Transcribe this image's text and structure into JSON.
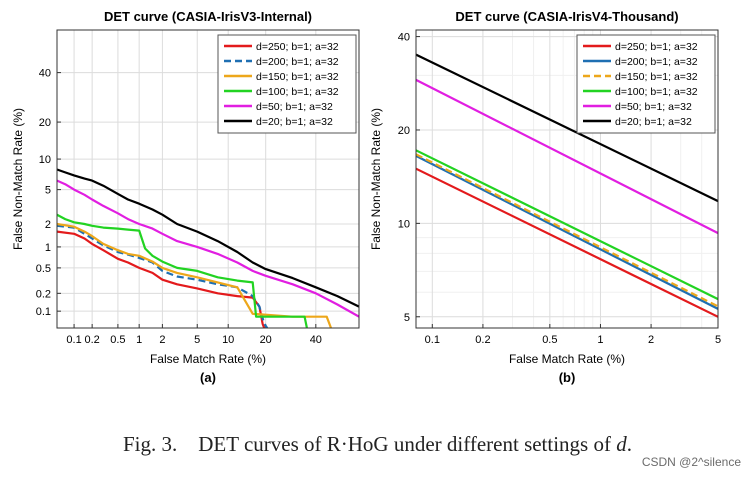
{
  "chart_data": [
    {
      "type": "line",
      "title": "DET curve (CASIA-IrisV3-Internal)",
      "xlabel": "False Match Rate (%)",
      "ylabel": "False Non-Match Rate (%)",
      "xscale": "probit",
      "yscale": "probit",
      "xlim": [
        0.05,
        60
      ],
      "ylim": [
        0.05,
        60
      ],
      "xticks": [
        0.1,
        0.2,
        0.5,
        1,
        2,
        5,
        10,
        20,
        40
      ],
      "xtick_labels": [
        "0.1",
        "0.2",
        "0.5",
        "1",
        "2",
        "5",
        "10",
        "20",
        "40"
      ],
      "yticks": [
        0.1,
        0.2,
        0.5,
        1,
        2,
        5,
        10,
        20,
        40
      ],
      "ytick_labels": [
        "0.1",
        "0.2",
        "0.5",
        "1",
        "2",
        "5",
        "10",
        "20",
        "40"
      ],
      "grid": true,
      "legend": "top-right",
      "panel_label": "(a)",
      "series": [
        {
          "name": "d=250; b=1; a=32",
          "color": "#e31a1c",
          "dash": "solid",
          "x": [
            0.05,
            0.1,
            0.15,
            0.2,
            0.3,
            0.5,
            0.7,
            1.0,
            1.5,
            2.0,
            3.0,
            5.0,
            8.0,
            12.0,
            16.0,
            18.0,
            19.0,
            19.5
          ],
          "y": [
            1.6,
            1.5,
            1.3,
            1.1,
            0.9,
            0.68,
            0.6,
            0.5,
            0.42,
            0.33,
            0.28,
            0.24,
            0.2,
            0.18,
            0.17,
            0.12,
            0.06,
            0.05
          ]
        },
        {
          "name": "d=200; b=1; a=32",
          "color": "#1f6fb2",
          "dash": "dashed",
          "x": [
            0.05,
            0.1,
            0.15,
            0.2,
            0.3,
            0.5,
            0.7,
            1.0,
            1.5,
            2.0,
            3.0,
            5.0,
            8.0,
            12.0,
            16.0,
            18.0,
            19.5,
            20.5
          ],
          "y": [
            1.9,
            1.8,
            1.5,
            1.3,
            1.05,
            0.85,
            0.78,
            0.7,
            0.6,
            0.45,
            0.37,
            0.33,
            0.28,
            0.25,
            0.18,
            0.12,
            0.06,
            0.05
          ]
        },
        {
          "name": "d=150; b=1; a=32",
          "color": "#eda71b",
          "dash": "solid",
          "x": [
            0.05,
            0.1,
            0.15,
            0.2,
            0.3,
            0.5,
            0.7,
            1.0,
            1.5,
            2.0,
            3.0,
            5.0,
            8.0,
            12.0,
            16.0,
            30.0,
            45.0,
            47.0
          ],
          "y": [
            2.0,
            1.85,
            1.6,
            1.4,
            1.1,
            0.9,
            0.8,
            0.75,
            0.62,
            0.5,
            0.42,
            0.36,
            0.3,
            0.25,
            0.09,
            0.08,
            0.08,
            0.05
          ]
        },
        {
          "name": "d=100; b=1; a=32",
          "color": "#22d322",
          "dash": "solid",
          "x": [
            0.05,
            0.07,
            0.1,
            0.15,
            0.2,
            0.3,
            0.5,
            0.7,
            1.0,
            1.2,
            1.5,
            2.0,
            3.0,
            5.0,
            8.0,
            12.0,
            16.0,
            17.0,
            35.0,
            36.0
          ],
          "y": [
            2.6,
            2.3,
            2.1,
            2.0,
            1.9,
            1.8,
            1.75,
            1.7,
            1.65,
            0.95,
            0.75,
            0.62,
            0.5,
            0.45,
            0.36,
            0.32,
            0.3,
            0.08,
            0.08,
            0.05
          ]
        },
        {
          "name": "d=50; b=1; a=32",
          "color": "#e11ee1",
          "dash": "solid",
          "x": [
            0.05,
            0.07,
            0.1,
            0.15,
            0.2,
            0.3,
            0.5,
            0.7,
            1.0,
            1.5,
            2.0,
            3.0,
            5.0,
            8.0,
            12.0,
            16.0,
            20.0,
            30.0,
            40.0,
            50.0,
            60.0
          ],
          "y": [
            6.2,
            5.7,
            5.0,
            4.4,
            3.9,
            3.3,
            2.7,
            2.3,
            2.0,
            1.75,
            1.5,
            1.2,
            1.0,
            0.8,
            0.6,
            0.45,
            0.38,
            0.28,
            0.2,
            0.13,
            0.08
          ]
        },
        {
          "name": "d=20; b=1; a=32",
          "color": "#000000",
          "dash": "solid",
          "x": [
            0.05,
            0.07,
            0.1,
            0.15,
            0.2,
            0.3,
            0.5,
            0.7,
            1.0,
            1.5,
            2.0,
            3.0,
            5.0,
            8.0,
            12.0,
            16.0,
            20.0,
            30.0,
            40.0,
            50.0,
            60.0
          ],
          "y": [
            8.0,
            7.5,
            7.0,
            6.5,
            6.2,
            5.5,
            4.5,
            3.9,
            3.5,
            3.0,
            2.6,
            2.0,
            1.6,
            1.2,
            0.85,
            0.6,
            0.48,
            0.35,
            0.25,
            0.18,
            0.12
          ]
        }
      ]
    },
    {
      "type": "line",
      "title": "DET curve (CASIA-IrisV4-Thousand)",
      "xlabel": "False Match Rate (%)",
      "ylabel": "False Non-Match Rate (%)",
      "xscale": "log",
      "yscale": "log",
      "xlim": [
        0.08,
        5
      ],
      "ylim": [
        4.6,
        42
      ],
      "xticks": [
        0.1,
        0.2,
        0.5,
        1,
        2,
        5
      ],
      "xtick_labels": [
        "0.1",
        "0.2",
        "0.5",
        "1",
        "2",
        "5"
      ],
      "yticks": [
        5,
        10,
        20,
        40
      ],
      "ytick_labels": [
        "5",
        "10",
        "20",
        "40"
      ],
      "grid": true,
      "legend": "top-right",
      "panel_label": "(b)",
      "series": [
        {
          "name": "d=250; b=1; a=32",
          "color": "#e31a1c",
          "dash": "solid",
          "x": [
            0.08,
            5
          ],
          "y": [
            15.0,
            5.0
          ]
        },
        {
          "name": "d=200; b=1; a=32",
          "color": "#1f6fb2",
          "dash": "solid",
          "x": [
            0.08,
            5
          ],
          "y": [
            16.5,
            5.3
          ]
        },
        {
          "name": "d=150; b=1; a=32",
          "color": "#eda71b",
          "dash": "dashed",
          "x": [
            0.08,
            5
          ],
          "y": [
            16.7,
            5.4
          ]
        },
        {
          "name": "d=100; b=1; a=32",
          "color": "#22d322",
          "dash": "solid",
          "x": [
            0.08,
            5
          ],
          "y": [
            17.2,
            5.7
          ]
        },
        {
          "name": "d=50; b=1; a=32",
          "color": "#e11ee1",
          "dash": "solid",
          "x": [
            0.08,
            5
          ],
          "y": [
            29.0,
            9.3
          ]
        },
        {
          "name": "d=20; b=1; a=32",
          "color": "#000000",
          "dash": "solid",
          "x": [
            0.08,
            5
          ],
          "y": [
            35.0,
            11.8
          ]
        }
      ]
    }
  ],
  "caption": {
    "prefix": "Fig. 3.",
    "text": "DET curves of R·HoG under different settings of",
    "variable": "d",
    "suffix": "."
  },
  "watermark": "CSDN @2^silence"
}
